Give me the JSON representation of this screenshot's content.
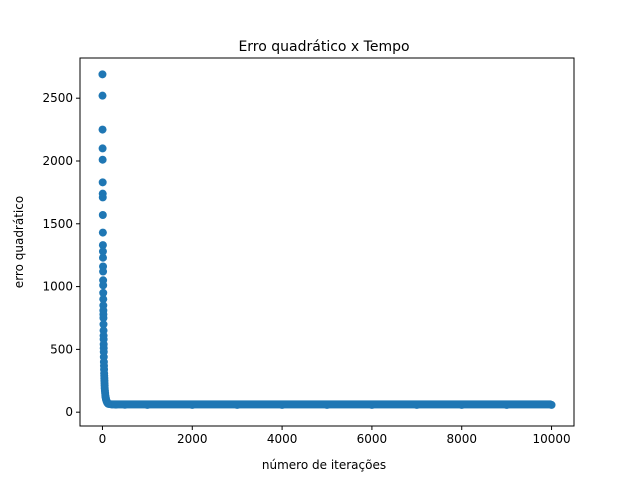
{
  "chart_data": {
    "type": "scatter",
    "title": "Erro quadrático x Tempo",
    "xlabel": "número de iterações",
    "ylabel": "erro quadrático",
    "xlim": [
      -500,
      10500
    ],
    "ylim": [
      -110,
      2820
    ],
    "xticks": [
      0,
      2000,
      4000,
      6000,
      8000,
      10000
    ],
    "xtick_labels": [
      "0",
      "2000",
      "4000",
      "6000",
      "8000",
      "10000"
    ],
    "yticks": [
      0,
      500,
      1000,
      1500,
      2000,
      2500
    ],
    "ytick_labels": [
      "0",
      "500",
      "1000",
      "1500",
      "2000",
      "2500"
    ],
    "grid": false,
    "marker_color": "#1f77b4",
    "series": [
      {
        "x": [
          0,
          1,
          2,
          3,
          4,
          5,
          6,
          7,
          8,
          9,
          10,
          11,
          12,
          13,
          14,
          15,
          16,
          17,
          18,
          19,
          20,
          21,
          22,
          23,
          24,
          25,
          26,
          27,
          28,
          29,
          30,
          32,
          34,
          36,
          38,
          40,
          42,
          44,
          46,
          48,
          50,
          55,
          60,
          65,
          70,
          75,
          80,
          90,
          100,
          110,
          120,
          130,
          150,
          200,
          300,
          500,
          1000,
          2000,
          3000,
          4000,
          5000,
          6000,
          7000,
          8000,
          9000,
          10000
        ],
        "y": [
          2690,
          2520,
          2250,
          2100,
          2010,
          1830,
          1740,
          1710,
          1570,
          1430,
          1330,
          1280,
          1230,
          1160,
          1120,
          1050,
          1010,
          950,
          900,
          850,
          810,
          780,
          750,
          700,
          650,
          610,
          580,
          540,
          510,
          480,
          440,
          400,
          370,
          340,
          310,
          290,
          270,
          250,
          230,
          210,
          190,
          170,
          150,
          130,
          120,
          110,
          100,
          90,
          80,
          75,
          70,
          67,
          65,
          62,
          60,
          59,
          58,
          58,
          58,
          58,
          58,
          58,
          58,
          58,
          58,
          58
        ]
      }
    ]
  }
}
